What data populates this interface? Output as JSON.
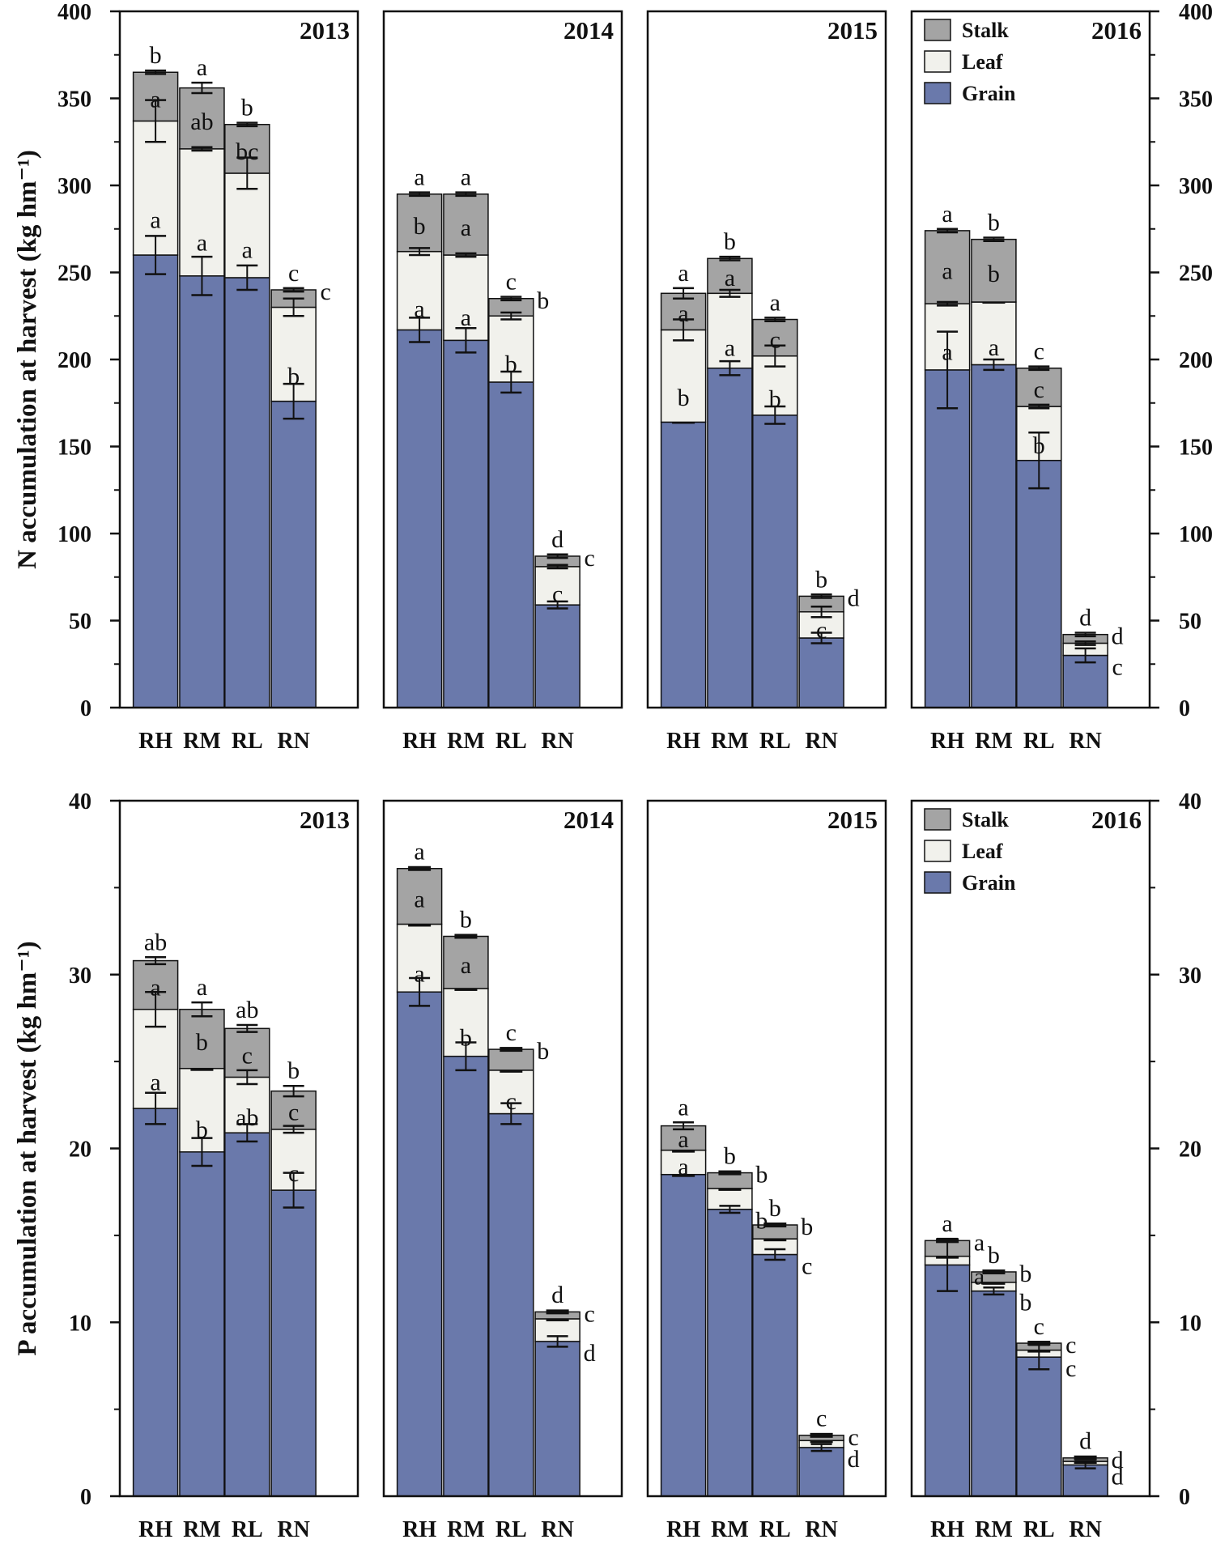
{
  "chart_data": [
    {
      "type": "bar",
      "stacked": true,
      "ylabel": "N accumulation at harvest (kg hm⁻¹)",
      "ylim": [
        0,
        400
      ],
      "yticks": [
        0,
        50,
        100,
        150,
        200,
        250,
        300,
        350,
        400
      ],
      "categories": [
        "RH",
        "RM",
        "RL",
        "RN"
      ],
      "legend": {
        "items": [
          "Stalk",
          "Leaf",
          "Grain"
        ],
        "location": "top-left of 2016 panel"
      },
      "panels": [
        {
          "title": "2013",
          "series": [
            {
              "name": "Grain",
              "values": [
                260,
                248,
                247,
                176
              ],
              "errors": [
                11,
                11,
                7,
                10
              ],
              "letters": [
                "a",
                "a",
                "a",
                "b"
              ]
            },
            {
              "name": "Leaf",
              "values": [
                77,
                73,
                60,
                54
              ],
              "errors": [
                12,
                1,
                9,
                5
              ],
              "letters": [
                "a",
                "ab",
                "bc",
                "c"
              ]
            },
            {
              "name": "Stalk",
              "values": [
                28,
                35,
                28,
                10
              ],
              "errors": [
                1,
                3,
                1,
                1
              ],
              "letters": [
                "b",
                "a",
                "b",
                "c"
              ]
            }
          ]
        },
        {
          "title": "2014",
          "series": [
            {
              "name": "Grain",
              "values": [
                217,
                211,
                187,
                59
              ],
              "errors": [
                7,
                7,
                6,
                2
              ],
              "letters": [
                "a",
                "a",
                "b",
                "c"
              ]
            },
            {
              "name": "Leaf",
              "values": [
                45,
                49,
                38,
                22
              ],
              "errors": [
                2,
                1,
                2,
                1
              ],
              "letters": [
                "b",
                "a",
                "b",
                "c"
              ]
            },
            {
              "name": "Stalk",
              "values": [
                33,
                35,
                10,
                6
              ],
              "errors": [
                1,
                1,
                1,
                1
              ],
              "letters": [
                "a",
                "a",
                "c",
                "d"
              ]
            }
          ]
        },
        {
          "title": "2015",
          "series": [
            {
              "name": "Grain",
              "values": [
                164,
                195,
                168,
                40
              ],
              "errors": [
                0.5,
                4,
                5,
                3
              ],
              "letters": [
                "b",
                "a",
                "b",
                "c"
              ]
            },
            {
              "name": "Leaf",
              "values": [
                53,
                43,
                34,
                15
              ],
              "errors": [
                6,
                2,
                6,
                3
              ],
              "letters": [
                "a",
                "a",
                "c",
                "d"
              ]
            },
            {
              "name": "Stalk",
              "values": [
                21,
                20,
                21,
                9
              ],
              "errors": [
                3,
                1,
                1,
                1
              ],
              "letters": [
                "a",
                "b",
                "a",
                "b"
              ]
            }
          ]
        },
        {
          "title": "2016",
          "series": [
            {
              "name": "Grain",
              "values": [
                194,
                197,
                142,
                30
              ],
              "errors": [
                22,
                3,
                16,
                4
              ],
              "letters": [
                "a",
                "a",
                "b",
                "c"
              ]
            },
            {
              "name": "Leaf",
              "values": [
                38,
                36,
                31,
                7
              ],
              "errors": [
                1,
                0.5,
                1,
                1
              ],
              "letters": [
                "a",
                "b",
                "c",
                "d"
              ]
            },
            {
              "name": "Stalk",
              "values": [
                42,
                36,
                22,
                5
              ],
              "errors": [
                1,
                1,
                1,
                1
              ],
              "letters": [
                "a",
                "b",
                "c",
                "d"
              ]
            }
          ]
        }
      ]
    },
    {
      "type": "bar",
      "stacked": true,
      "ylabel": "P accumulation at harvest (kg hm⁻¹)",
      "ylim": [
        0,
        40
      ],
      "yticks": [
        0,
        10,
        20,
        30,
        40
      ],
      "categories": [
        "RH",
        "RM",
        "RL",
        "RN"
      ],
      "legend": {
        "items": [
          "Stalk",
          "Leaf",
          "Grain"
        ],
        "location": "top-left of 2016 panel"
      },
      "panels": [
        {
          "title": "2013",
          "series": [
            {
              "name": "Grain",
              "values": [
                22.3,
                19.8,
                20.9,
                17.6
              ],
              "errors": [
                0.9,
                0.8,
                0.5,
                1.0
              ],
              "letters": [
                "a",
                "b",
                "ab",
                "c"
              ]
            },
            {
              "name": "Leaf",
              "values": [
                5.7,
                4.8,
                3.2,
                3.5
              ],
              "errors": [
                1.0,
                0.1,
                0.4,
                0.2
              ],
              "letters": [
                "a",
                "b",
                "c",
                "c"
              ]
            },
            {
              "name": "Stalk",
              "values": [
                2.8,
                3.4,
                2.8,
                2.2
              ],
              "errors": [
                0.2,
                0.4,
                0.2,
                0.3
              ],
              "letters": [
                "ab",
                "a",
                "ab",
                "b"
              ]
            }
          ]
        },
        {
          "title": "2014",
          "series": [
            {
              "name": "Grain",
              "values": [
                29.0,
                25.3,
                22.0,
                8.9
              ],
              "errors": [
                0.8,
                0.8,
                0.6,
                0.3
              ],
              "letters": [
                "a",
                "b",
                "c",
                "d"
              ]
            },
            {
              "name": "Leaf",
              "values": [
                3.9,
                3.9,
                2.5,
                1.3
              ],
              "errors": [
                0.1,
                0.1,
                0.1,
                0.1
              ],
              "letters": [
                "a",
                "a",
                "b",
                "c"
              ]
            },
            {
              "name": "Stalk",
              "values": [
                3.2,
                3.0,
                1.2,
                0.4
              ],
              "errors": [
                0.1,
                0.1,
                0.1,
                0.1
              ],
              "letters": [
                "a",
                "b",
                "c",
                "d"
              ]
            }
          ]
        },
        {
          "title": "2015",
          "series": [
            {
              "name": "Grain",
              "values": [
                18.5,
                16.5,
                13.9,
                2.8
              ],
              "errors": [
                0.1,
                0.2,
                0.3,
                0.2
              ],
              "letters": [
                "a",
                "b",
                "c",
                "d"
              ]
            },
            {
              "name": "Leaf",
              "values": [
                1.4,
                1.2,
                0.9,
                0.4
              ],
              "errors": [
                0.1,
                0.1,
                0.1,
                0.1
              ],
              "letters": [
                "a",
                "b",
                "b",
                "c"
              ]
            },
            {
              "name": "Stalk",
              "values": [
                1.4,
                0.9,
                0.8,
                0.3
              ],
              "errors": [
                0.2,
                0.1,
                0.1,
                0.1
              ],
              "letters": [
                "a",
                "b",
                "b",
                "c"
              ]
            }
          ]
        },
        {
          "title": "2016",
          "series": [
            {
              "name": "Grain",
              "values": [
                13.3,
                11.8,
                8.0,
                1.8
              ],
              "errors": [
                1.5,
                0.2,
                0.7,
                0.2
              ],
              "letters": [
                "a",
                "b",
                "c",
                "d"
              ]
            },
            {
              "name": "Leaf",
              "values": [
                0.5,
                0.5,
                0.4,
                0.2
              ],
              "errors": [
                0.1,
                0.1,
                0.1,
                0.1
              ],
              "letters": [
                "a",
                "b",
                "c",
                "d"
              ]
            },
            {
              "name": "Stalk",
              "values": [
                0.9,
                0.6,
                0.4,
                0.2
              ],
              "errors": [
                0.1,
                0.1,
                0.1,
                0.1
              ],
              "letters": [
                "a",
                "b",
                "c",
                "d"
              ]
            }
          ]
        }
      ]
    }
  ],
  "colors": {
    "Grain": "#6a79ab",
    "Leaf": "#f1f1ec",
    "Stalk": "#a4a4a4",
    "axis": "#111111"
  }
}
